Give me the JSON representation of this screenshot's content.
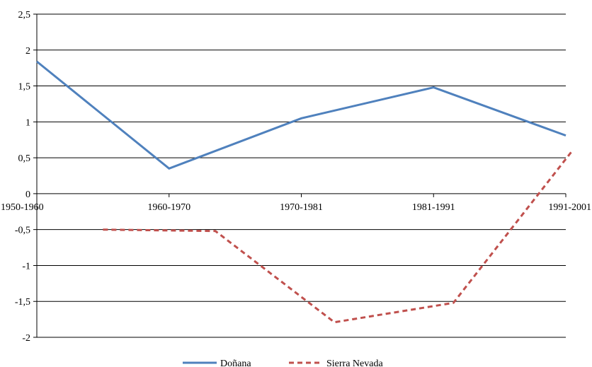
{
  "chart_data": {
    "type": "line",
    "categories": [
      "1950-1960",
      "1960-1970",
      "1970-1981",
      "1981-1991",
      "1991-2001"
    ],
    "y_ticks": [
      "2,5",
      "2",
      "1,5",
      "1",
      "0,5",
      "0",
      "-0,5",
      "-1",
      "-1,5",
      "-2"
    ],
    "ylim": [
      -2,
      2.5
    ],
    "grid": true,
    "legend_position": "bottom",
    "series": [
      {
        "name": "Doñana",
        "style": "solid",
        "color": "#4F81BD",
        "points": [
          [
            0,
            1.84
          ],
          [
            1,
            0.35
          ],
          [
            2,
            1.05
          ],
          [
            3,
            1.48
          ],
          [
            4,
            0.81
          ]
        ]
      },
      {
        "name": "Sierra Nevada",
        "style": "dashed",
        "color": "#C0504D",
        "points": [
          [
            0.5,
            -0.5
          ],
          [
            1.35,
            -0.52
          ],
          [
            2.25,
            -1.79
          ],
          [
            3.15,
            -1.52
          ],
          [
            4.05,
            0.6
          ]
        ]
      }
    ]
  }
}
